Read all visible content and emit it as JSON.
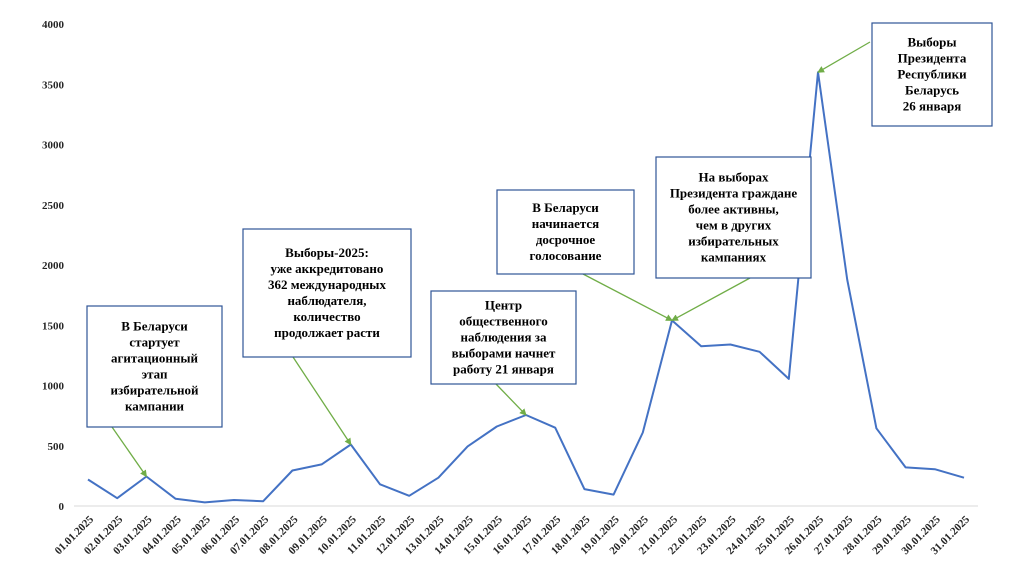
{
  "chart_data": {
    "type": "line",
    "title": "",
    "xlabel": "",
    "ylabel": "",
    "ylim": [
      0,
      4000
    ],
    "yticks": [
      "0",
      "500",
      "1000",
      "1500",
      "2000",
      "2500",
      "3000",
      "3500",
      "4000"
    ],
    "grid": false,
    "categories": [
      "01.01.2025",
      "02.01.2025",
      "03.01.2025",
      "04.01.2025",
      "05.01.2025",
      "06.01.2025",
      "07.01.2025",
      "08.01.2025",
      "09.01.2025",
      "10.01.2025",
      "11.01.2025",
      "12.01.2025",
      "13.01.2025",
      "14.01.2025",
      "15.01.2025",
      "16.01.2025",
      "17.01.2025",
      "18.01.2025",
      "19.01.2025",
      "20.01.2025",
      "21.01.2025",
      "22.01.2025",
      "23.01.2025",
      "24.01.2025",
      "25.01.2025",
      "26.01.2025",
      "27.01.2025",
      "28.01.2025",
      "29.01.2025",
      "30.01.2025",
      "31.01.2025"
    ],
    "series": [
      {
        "color": "#4472c4",
        "values": [
          220,
          65,
          245,
          60,
          30,
          50,
          40,
          295,
          345,
          510,
          180,
          85,
          235,
          495,
          660,
          755,
          650,
          140,
          95,
          610,
          1540,
          1325,
          1340,
          1280,
          1055,
          3600,
          1880,
          645,
          320,
          305,
          235
        ]
      }
    ],
    "annotations": [
      {
        "lines": [
          "В Беларуси",
          "стартует",
          "агитационный",
          "этап",
          "избирательной",
          "кампании"
        ],
        "target": "03.01.2025"
      },
      {
        "lines": [
          "Выборы-2025:",
          "уже аккредитовано",
          "362 международных",
          "наблюдателя,",
          "количество",
          "продолжает расти"
        ],
        "target": "10.01.2025"
      },
      {
        "lines": [
          "Центр",
          "общественного",
          "наблюдения за",
          "выборами начнет",
          "работу 21 января"
        ],
        "target": "16.01.2025"
      },
      {
        "lines": [
          "В Беларуси",
          "начинается",
          "досрочное",
          "голосование"
        ],
        "target": "21.01.2025"
      },
      {
        "lines": [
          "На выборах",
          "Президента граждане",
          "более активны,",
          "чем в других",
          "избирательных",
          "кампаниях"
        ],
        "target": "21.01.2025"
      },
      {
        "lines": [
          "Выборы",
          "Президента",
          "Республики",
          "Беларусь",
          "26 января"
        ],
        "target": "26.01.2025"
      }
    ],
    "colors": {
      "line": "#4472c4",
      "arrow": "#70ad47",
      "box_border": "#2f5597"
    }
  }
}
